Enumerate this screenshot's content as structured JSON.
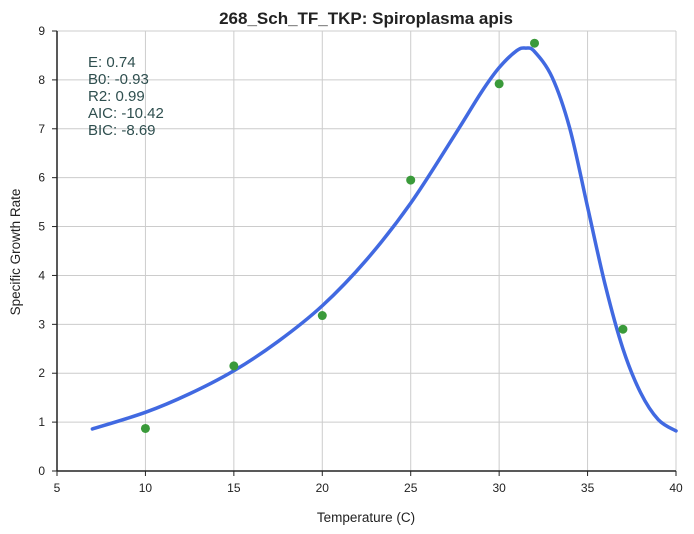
{
  "chart_data": {
    "type": "scatter",
    "title": "268_Sch_TF_TKP: Spiroplasma apis",
    "xlabel": "Temperature (C)",
    "ylabel": "Specific Growth Rate",
    "xlim": [
      5,
      40
    ],
    "ylim": [
      0,
      9
    ],
    "xticks": [
      5,
      10,
      15,
      20,
      25,
      30,
      35,
      40
    ],
    "yticks": [
      0,
      1,
      2,
      3,
      4,
      5,
      6,
      7,
      8,
      9
    ],
    "xtick_labels": [
      "5",
      "10",
      "15",
      "20",
      "25",
      "30",
      "35",
      "40"
    ],
    "ytick_labels": [
      "0",
      "1",
      "2",
      "3",
      "4",
      "5",
      "6",
      "7",
      "8",
      "9"
    ],
    "grid": true,
    "series": [
      {
        "kind": "points",
        "color": "#3a9a3a",
        "x": [
          10,
          15,
          20,
          25,
          30,
          32,
          37
        ],
        "y": [
          0.87,
          2.15,
          3.18,
          5.95,
          7.92,
          8.75,
          2.9
        ]
      },
      {
        "kind": "line",
        "color": "#4169e1",
        "x": [
          7,
          10,
          12.5,
          15,
          17.5,
          20,
          22.5,
          25,
          27.5,
          29,
          30,
          31,
          31.5,
          32,
          33,
          34,
          35,
          36,
          37,
          38,
          39,
          40
        ],
        "y": [
          0.86,
          1.2,
          1.58,
          2.05,
          2.65,
          3.38,
          4.32,
          5.48,
          6.88,
          7.75,
          8.25,
          8.6,
          8.65,
          8.58,
          8.05,
          7.0,
          5.4,
          3.8,
          2.5,
          1.6,
          1.05,
          0.82
        ]
      }
    ],
    "annotations": [
      "E:  0.74",
      "B0:  -0.93",
      "R2:  0.99",
      "AIC: -10.42",
      "BIC: -8.69"
    ]
  }
}
